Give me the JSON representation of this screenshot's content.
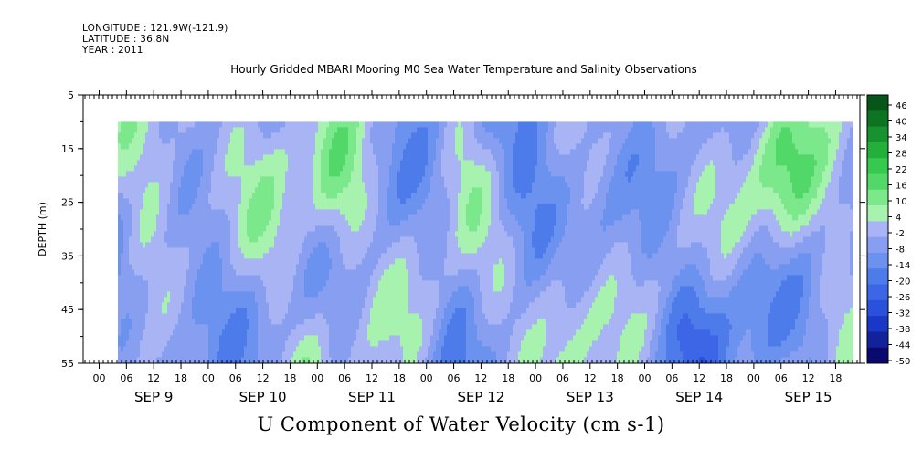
{
  "header": {
    "longitude": "LONGITUDE : 121.9W(-121.9)",
    "latitude": "LATITUDE : 36.8N",
    "year": "YEAR : 2011"
  },
  "chart_data": {
    "type": "heatmap",
    "title": "Hourly Gridded MBARI Mooring M0 Sea Water Temperature and Salinity Observations",
    "xlabel": "U Component of Water Velocity (cm s-1)",
    "ylabel": "DEPTH (m)",
    "y_ticks": [
      5,
      15,
      25,
      35,
      45,
      55
    ],
    "ylim": [
      55,
      5
    ],
    "x_hour_labels": [
      "00",
      "06",
      "12",
      "18",
      "00",
      "06",
      "12",
      "18",
      "00",
      "06",
      "12",
      "18",
      "00",
      "06",
      "12",
      "18",
      "00",
      "06",
      "12",
      "18",
      "00",
      "06",
      "12",
      "18",
      "00",
      "06",
      "12",
      "18"
    ],
    "x_day_labels": [
      "SEP  9",
      "SEP 10",
      "SEP 11",
      "SEP 12",
      "SEP 13",
      "SEP 14",
      "SEP 15"
    ],
    "data_depth_range_m": [
      10,
      55
    ],
    "colorbar": {
      "levels": [
        -50,
        -44,
        -38,
        -32,
        -26,
        -20,
        -14,
        -8,
        -2,
        4,
        10,
        16,
        22,
        28,
        34,
        40,
        46
      ],
      "labels": [
        "46",
        "40",
        "34",
        "28",
        "22",
        "16",
        "10",
        "4",
        "-2",
        "-8",
        "-14",
        "-20",
        "-26",
        "-32",
        "-38",
        "-44",
        "-50"
      ]
    },
    "colors": {
      "dominant_negative": "#a9b4f4",
      "strong_negative": "#4468e8",
      "weak_positive": "#a8f2b0",
      "positive": "#52d868"
    },
    "dominant_range_cm_s": [
      -8,
      4
    ],
    "notes_positive_patches": [
      "SEP 10 06-12 h, 10-25 m",
      "SEP 12 06 h, 10-25 m",
      "SEP 15 06 h, 10-30 m"
    ]
  }
}
